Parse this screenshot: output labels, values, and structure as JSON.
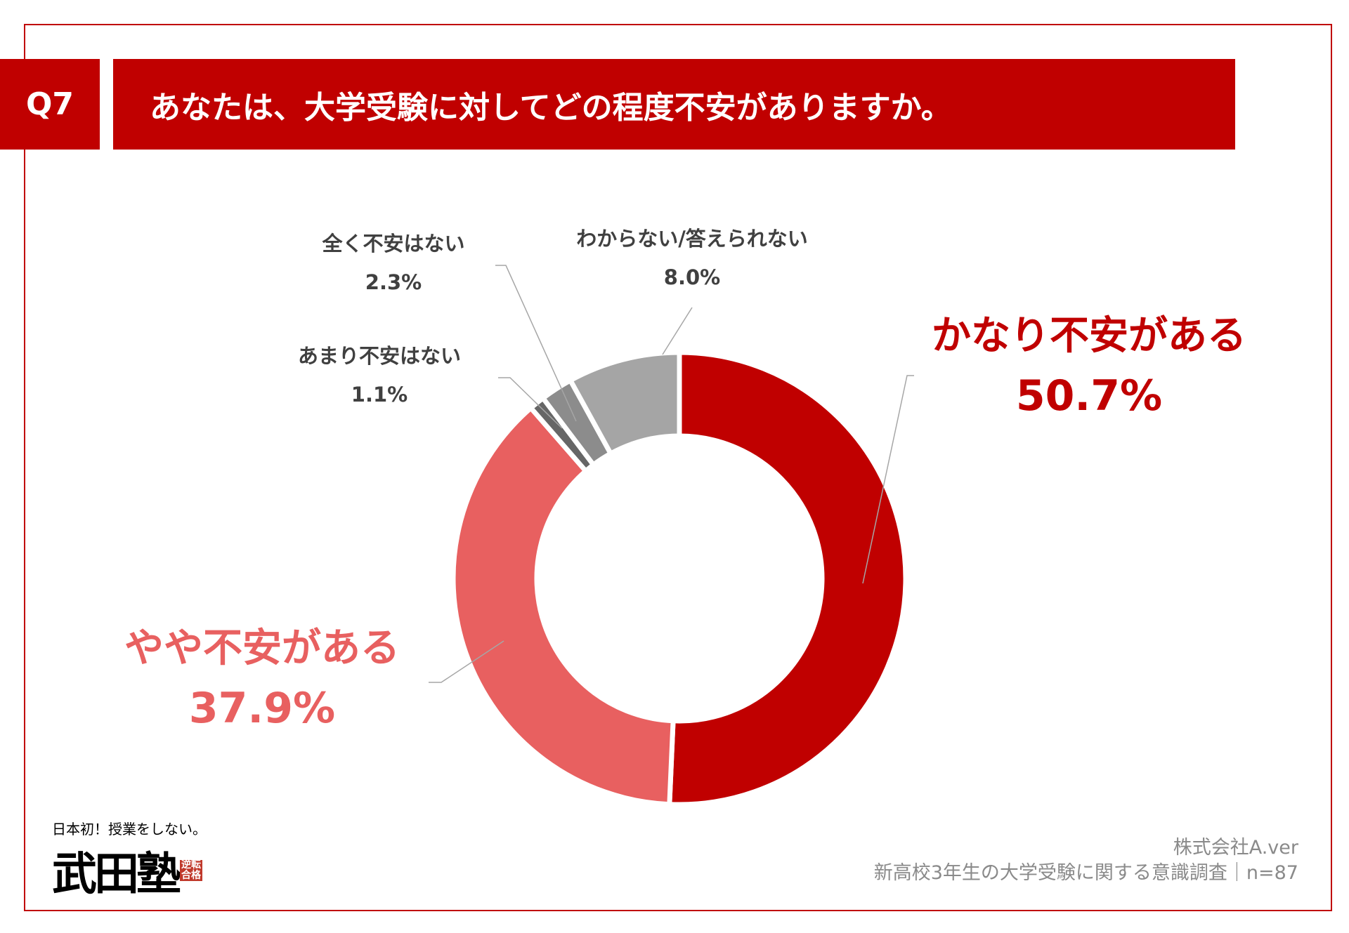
{
  "header": {
    "question_no": "Q7",
    "title": "あなたは、大学受験に対してどの程度不安がありますか。"
  },
  "chart_data": {
    "type": "pie",
    "variant": "donut",
    "title": "あなたは、大学受験に対してどの程度不安がありますか。",
    "direction": "clockwise-from-top",
    "slices": [
      {
        "label": "かなり不安がある",
        "value": 50.7,
        "value_label": "50.7%",
        "color": "#C00000"
      },
      {
        "label": "やや不安がある",
        "value": 37.9,
        "value_label": "37.9%",
        "color": "#E86060"
      },
      {
        "label": "あまり不安はない",
        "value": 1.1,
        "value_label": "1.1%",
        "color": "#666666"
      },
      {
        "label": "全く不安はない",
        "value": 2.3,
        "value_label": "2.3%",
        "color": "#8C8C8C"
      },
      {
        "label": "わからない/答えられない",
        "value": 8.0,
        "value_label": "8.0%",
        "color": "#A5A5A5"
      }
    ]
  },
  "footer": {
    "company": "株式会社A.ver",
    "survey": "新高校3年生の大学受験に関する意識調査｜n=87"
  },
  "logo": {
    "tagline": "日本初！授業をしない。",
    "name": "武田塾",
    "seal": "逆転合格"
  }
}
